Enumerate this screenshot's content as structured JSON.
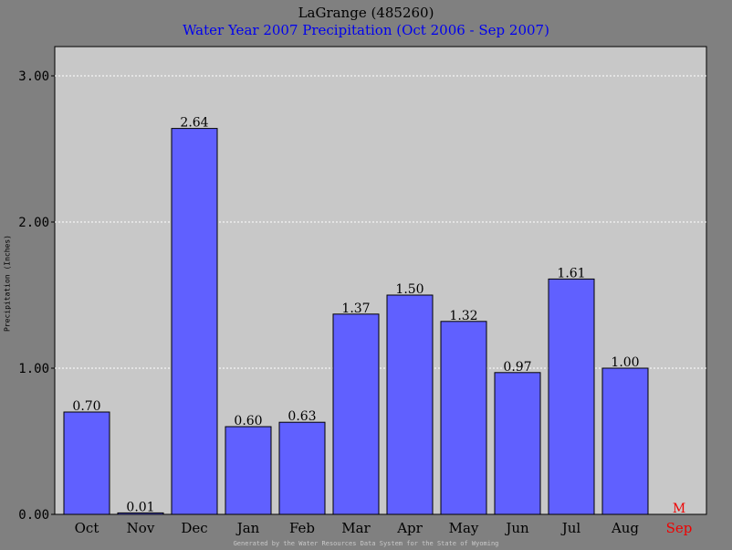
{
  "chart_data": {
    "type": "bar",
    "title": "LaGrange (485260)",
    "subtitle": "Water Year 2007 Precipitation (Oct 2006 - Sep 2007)",
    "ylabel": "Precipitation (Inches)",
    "xlabel": "",
    "footer": "Generated by the Water Resources Data System for the State of Wyoming",
    "categories": [
      "Oct",
      "Nov",
      "Dec",
      "Jan",
      "Feb",
      "Mar",
      "Apr",
      "May",
      "Jun",
      "Jul",
      "Aug",
      "Sep"
    ],
    "values": [
      0.7,
      0.01,
      2.64,
      0.6,
      0.63,
      1.37,
      1.5,
      1.32,
      0.97,
      1.61,
      1.0,
      null
    ],
    "value_labels": [
      "0.70",
      "0.01",
      "2.64",
      "0.60",
      "0.63",
      "1.37",
      "1.50",
      "1.32",
      "0.97",
      "1.61",
      "1.00",
      "M"
    ],
    "missing_categories": [
      "Sep"
    ],
    "ylim": [
      0,
      3.0
    ],
    "yticks": [
      "0.00",
      "1.00",
      "2.00",
      "3.00"
    ],
    "grid": true,
    "colors": {
      "page_background": "#808080",
      "plot_background": "#c8c8c8",
      "bar_fill": "#6060ff",
      "gridline": "#ffffff",
      "missing_label": "#ee0000",
      "subtitle": "#0000ee"
    }
  }
}
